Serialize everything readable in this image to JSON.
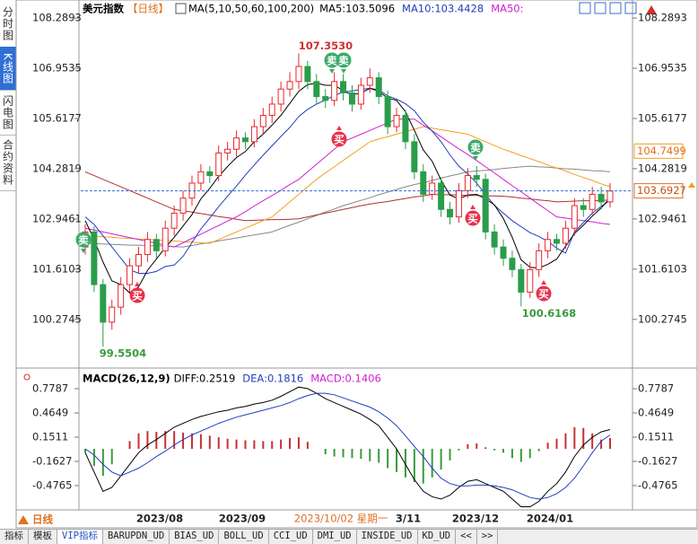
{
  "sidebar": [
    "分时图",
    "K线图",
    "闪电图",
    "合约资料"
  ],
  "tabs": [
    "指标",
    "模板",
    "VIP指标",
    "BARUPDN_UD",
    "BIAS_UD",
    "BOLL_UD",
    "CCI_UD",
    "DMI_UD",
    "INSIDE_UD",
    "KD_UD",
    "<<",
    ">>"
  ],
  "period_button": "日线",
  "chart_data": [
    {
      "type": "candlestick",
      "title": "美元指数",
      "subtitle": "【日线】",
      "indicator": "MA(5,10,50,60,100,200)",
      "legend": [
        {
          "text": "MA5:103.5096",
          "color": "#000000"
        },
        {
          "text": "MA10:103.4428",
          "color": "#1f3fbf"
        },
        {
          "text": "MA50:",
          "color": "#d020d0"
        }
      ],
      "up_color": "#e8262d",
      "down_color": "#2a9d4a",
      "ylim": [
        99.1,
        108.53
      ],
      "yticks": [
        108.2893,
        106.9535,
        105.6177,
        104.2819,
        102.9461,
        101.6103,
        100.2745
      ],
      "x_labels": [
        "2023/08",
        "2023/09",
        "2023/10/02 星期一",
        "3/11",
        "2023/12",
        "2024/01"
      ],
      "open": [
        102.2,
        102.6,
        101.2,
        100.2,
        100.6,
        101.2,
        101.7,
        102.0,
        102.4,
        102.1,
        102.7,
        103.1,
        103.5,
        103.9,
        104.2,
        104.1,
        104.7,
        104.8,
        105.1,
        105.0,
        105.4,
        105.7,
        106.0,
        106.4,
        106.6,
        107.0,
        106.6,
        106.2,
        106.1,
        106.6,
        106.3,
        106.0,
        106.5,
        106.7,
        106.2,
        105.4,
        105.7,
        105.0,
        104.2,
        103.6,
        103.9,
        103.2,
        103.0,
        103.7,
        104.1,
        104.0,
        102.6,
        102.2,
        101.9,
        101.6,
        101.0,
        101.6,
        102.1,
        102.4,
        102.3,
        102.7,
        103.3,
        103.2,
        103.6,
        103.4
      ],
      "high": [
        102.8,
        102.75,
        101.35,
        100.8,
        101.4,
        101.9,
        102.2,
        102.6,
        102.55,
        102.9,
        103.3,
        103.7,
        104.1,
        104.4,
        104.35,
        104.9,
        105.0,
        105.3,
        105.25,
        105.6,
        105.9,
        106.2,
        106.6,
        106.85,
        107.35,
        107.15,
        106.8,
        106.4,
        106.85,
        106.8,
        106.5,
        106.7,
        106.95,
        106.85,
        106.35,
        105.9,
        105.85,
        105.2,
        104.4,
        104.1,
        104.05,
        103.4,
        103.9,
        104.3,
        104.35,
        104.15,
        102.8,
        102.4,
        102.1,
        101.75,
        101.8,
        102.3,
        102.6,
        102.55,
        102.9,
        103.5,
        103.5,
        103.8,
        103.8,
        103.9
      ],
      "low": [
        102.0,
        101.0,
        99.55,
        100.0,
        100.4,
        101.0,
        101.5,
        101.8,
        101.9,
        101.95,
        102.5,
        102.9,
        103.3,
        103.7,
        103.9,
        103.95,
        104.5,
        104.6,
        104.8,
        104.85,
        105.2,
        105.5,
        105.8,
        106.2,
        106.4,
        106.4,
        106.0,
        105.9,
        105.95,
        106.1,
        105.8,
        105.85,
        106.3,
        106.0,
        105.2,
        105.25,
        104.8,
        104.0,
        103.4,
        103.45,
        103.0,
        102.8,
        102.85,
        103.5,
        103.8,
        102.4,
        102.0,
        101.7,
        101.4,
        100.62,
        100.85,
        101.4,
        101.9,
        102.1,
        102.15,
        102.5,
        103.0,
        103.05,
        103.2,
        103.25
      ],
      "close": [
        102.6,
        101.2,
        100.2,
        100.6,
        101.2,
        101.7,
        102.0,
        102.4,
        102.1,
        102.7,
        103.1,
        103.5,
        103.9,
        104.2,
        104.1,
        104.7,
        104.8,
        105.1,
        105.0,
        105.4,
        105.7,
        106.0,
        106.4,
        106.6,
        107.0,
        106.6,
        106.2,
        106.1,
        106.6,
        106.3,
        106.0,
        106.5,
        106.7,
        106.2,
        105.4,
        105.7,
        105.0,
        104.2,
        103.6,
        103.9,
        103.2,
        103.0,
        103.7,
        104.1,
        104.0,
        102.6,
        102.2,
        101.9,
        101.6,
        101.0,
        101.6,
        102.1,
        102.4,
        102.3,
        102.7,
        103.3,
        103.2,
        103.6,
        103.4,
        103.69
      ],
      "series": [
        {
          "color": "#888888",
          "values": [
            102.3,
            102.29,
            102.28,
            102.27,
            102.26,
            102.25,
            102.25,
            102.24,
            102.23,
            102.22,
            102.21,
            102.2,
            102.24,
            102.28,
            102.32,
            102.36,
            102.4,
            102.44,
            102.48,
            102.52,
            102.56,
            102.6,
            102.69,
            102.78,
            102.86,
            102.95,
            103.04,
            103.13,
            103.21,
            103.3,
            103.37,
            103.44,
            103.51,
            103.59,
            103.66,
            103.73,
            103.8,
            103.86,
            103.91,
            103.97,
            104.03,
            104.09,
            104.14,
            104.2,
            104.22,
            104.24,
            104.26,
            104.29,
            104.31,
            104.33,
            104.35,
            104.33,
            104.32,
            104.3,
            104.28,
            104.27,
            104.25,
            104.23,
            104.22,
            104.2
          ]
        },
        {
          "color": "#b03030",
          "values": [
            104.2,
            104.1,
            104.0,
            103.9,
            103.8,
            103.7,
            103.6,
            103.5,
            103.4,
            103.3,
            103.2,
            103.16,
            103.13,
            103.09,
            103.05,
            103.01,
            102.98,
            102.94,
            102.9,
            102.91,
            102.92,
            102.93,
            102.93,
            102.94,
            102.95,
            103.0,
            103.05,
            103.1,
            103.15,
            103.2,
            103.25,
            103.3,
            103.34,
            103.38,
            103.41,
            103.45,
            103.49,
            103.53,
            103.56,
            103.6,
            103.59,
            103.59,
            103.58,
            103.57,
            103.57,
            103.56,
            103.56,
            103.55,
            103.53,
            103.5,
            103.48,
            103.45,
            103.43,
            103.4,
            103.41,
            103.42,
            103.43,
            103.43,
            103.44,
            103.45
          ]
        },
        {
          "color": "#f0a020",
          "values": [
            102.5,
            102.49,
            102.47,
            102.46,
            102.44,
            102.43,
            102.41,
            102.4,
            102.39,
            102.37,
            102.36,
            102.34,
            102.33,
            102.31,
            102.3,
            102.4,
            102.5,
            102.6,
            102.7,
            102.8,
            102.9,
            103.0,
            103.2,
            103.4,
            103.6,
            103.8,
            104.0,
            104.17,
            104.33,
            104.5,
            104.67,
            104.83,
            105.0,
            105.07,
            105.13,
            105.2,
            105.27,
            105.33,
            105.4,
            105.36,
            105.32,
            105.28,
            105.24,
            105.2,
            105.1,
            105.0,
            104.9,
            104.8,
            104.72,
            104.63,
            104.55,
            104.47,
            104.38,
            104.3,
            104.22,
            104.13,
            104.05,
            103.97,
            103.88,
            103.8
          ]
        },
        {
          "color": "#d020d0",
          "values": [
            102.7,
            102.65,
            102.6,
            102.55,
            102.5,
            102.45,
            102.4,
            102.35,
            102.3,
            102.25,
            102.2,
            102.31,
            102.43,
            102.54,
            102.66,
            102.77,
            102.89,
            103.0,
            103.14,
            103.29,
            103.43,
            103.57,
            103.71,
            103.86,
            104.0,
            104.2,
            104.4,
            104.6,
            104.8,
            105.0,
            105.1,
            105.2,
            105.3,
            105.4,
            105.5,
            105.6,
            105.6,
            105.6,
            105.44,
            105.29,
            105.13,
            104.97,
            104.81,
            104.66,
            104.5,
            104.33,
            104.17,
            104.0,
            103.83,
            103.67,
            103.5,
            103.33,
            103.17,
            103.0,
            102.97,
            102.93,
            102.9,
            102.87,
            102.83,
            102.8
          ]
        },
        {
          "color": "#1f3fbf",
          "values": [
            103.0,
            102.8,
            102.5,
            102.2,
            101.9,
            101.6,
            101.5,
            101.5,
            101.55,
            101.68,
            101.72,
            101.95,
            102.32,
            102.68,
            102.97,
            103.27,
            103.55,
            103.82,
            104.11,
            104.38,
            104.64,
            104.89,
            105.14,
            105.38,
            105.67,
            105.86,
            106.0,
            106.11,
            106.23,
            106.32,
            106.35,
            106.39,
            106.42,
            106.38,
            106.22,
            106.13,
            106.01,
            105.82,
            105.52,
            105.28,
            105.0,
            104.65,
            104.35,
            104.14,
            103.9,
            103.59,
            103.31,
            103.1,
            102.9,
            102.74,
            102.58,
            102.48,
            102.35,
            102.17,
            102.04,
            102.6,
            102.85,
            103.1,
            103.28,
            103.44
          ]
        },
        {
          "color": "#000000",
          "values": [
            102.9,
            102.4,
            101.8,
            101.3,
            101.2,
            100.98,
            101.14,
            101.58,
            101.88,
            102.18,
            102.46,
            102.76,
            103.06,
            103.48,
            103.76,
            104.08,
            104.34,
            104.58,
            104.74,
            105.0,
            105.2,
            105.44,
            105.7,
            106.02,
            106.34,
            106.52,
            106.56,
            106.5,
            106.5,
            106.36,
            106.24,
            106.3,
            106.42,
            106.34,
            106.16,
            106.1,
            105.8,
            105.3,
            104.78,
            104.48,
            103.98,
            103.58,
            103.48,
            103.58,
            103.6,
            103.48,
            103.32,
            102.96,
            102.46,
            101.86,
            101.66,
            101.64,
            101.74,
            101.88,
            102.22,
            102.56,
            102.78,
            103.02,
            103.24,
            103.51
          ]
        }
      ],
      "annotations": [
        {
          "value": 107.353,
          "label": "107.3530"
        },
        99.5504,
        100.6168
      ],
      "signals": [
        "卖",
        "卖",
        "卖",
        "卖",
        "买",
        "买",
        "买",
        "买"
      ],
      "last_price": 103.6927,
      "ma_tag": 104.7499
    },
    {
      "type": "macd",
      "title": "MACD(26,12,9)",
      "legend": [
        {
          "text": "DIFF:0.2519",
          "color": "#000000"
        },
        {
          "text": "DEA:0.1816",
          "color": "#1f3fbf"
        },
        {
          "text": "MACD:0.1406",
          "color": "#d020d0"
        }
      ],
      "ylim": [
        -0.756,
        0.988
      ],
      "yticks": [
        0.7787,
        0.4649,
        0.1511,
        -0.1627,
        -0.4765
      ],
      "up_color": "#c83030",
      "down_color": "#3a9a3a",
      "histogram": [
        -0.05,
        -0.22,
        -0.35,
        -0.2,
        0.0,
        0.1,
        0.2,
        0.23,
        0.22,
        0.23,
        0.23,
        0.21,
        0.2,
        0.19,
        0.17,
        0.15,
        0.13,
        0.12,
        0.11,
        0.11,
        0.1,
        0.1,
        0.12,
        0.14,
        0.15,
        0.09,
        0.0,
        -0.07,
        -0.1,
        -0.11,
        -0.12,
        -0.13,
        -0.16,
        -0.18,
        -0.25,
        -0.3,
        -0.37,
        -0.43,
        -0.45,
        -0.37,
        -0.27,
        -0.15,
        -0.02,
        0.06,
        0.07,
        0.02,
        -0.02,
        -0.05,
        -0.12,
        -0.17,
        -0.12,
        -0.03,
        0.08,
        0.13,
        0.2,
        0.28,
        0.27,
        0.2,
        0.12,
        0.14
      ],
      "series": [
        {
          "color": "#000000",
          "values": [
            -0.05,
            -0.3,
            -0.55,
            -0.5,
            -0.35,
            -0.2,
            -0.05,
            0.05,
            0.12,
            0.2,
            0.28,
            0.33,
            0.38,
            0.42,
            0.45,
            0.48,
            0.5,
            0.53,
            0.55,
            0.58,
            0.6,
            0.63,
            0.68,
            0.74,
            0.8,
            0.78,
            0.72,
            0.65,
            0.6,
            0.55,
            0.5,
            0.45,
            0.38,
            0.3,
            0.15,
            0.0,
            -0.2,
            -0.4,
            -0.55,
            -0.62,
            -0.65,
            -0.6,
            -0.5,
            -0.42,
            -0.4,
            -0.45,
            -0.5,
            -0.55,
            -0.65,
            -0.75,
            -0.75,
            -0.68,
            -0.55,
            -0.45,
            -0.3,
            -0.1,
            0.05,
            0.15,
            0.22,
            0.25
          ]
        },
        {
          "color": "#1f3fbf",
          "values": [
            0.0,
            -0.08,
            -0.2,
            -0.3,
            -0.35,
            -0.3,
            -0.25,
            -0.18,
            -0.1,
            -0.03,
            0.05,
            0.12,
            0.18,
            0.23,
            0.28,
            0.33,
            0.37,
            0.41,
            0.44,
            0.47,
            0.5,
            0.53,
            0.56,
            0.6,
            0.65,
            0.69,
            0.72,
            0.72,
            0.7,
            0.66,
            0.62,
            0.58,
            0.54,
            0.48,
            0.4,
            0.3,
            0.17,
            0.03,
            -0.1,
            -0.25,
            -0.38,
            -0.45,
            -0.48,
            -0.48,
            -0.47,
            -0.47,
            -0.48,
            -0.5,
            -0.53,
            -0.58,
            -0.63,
            -0.65,
            -0.63,
            -0.58,
            -0.5,
            -0.38,
            -0.22,
            -0.05,
            0.1,
            0.18
          ]
        }
      ]
    }
  ]
}
